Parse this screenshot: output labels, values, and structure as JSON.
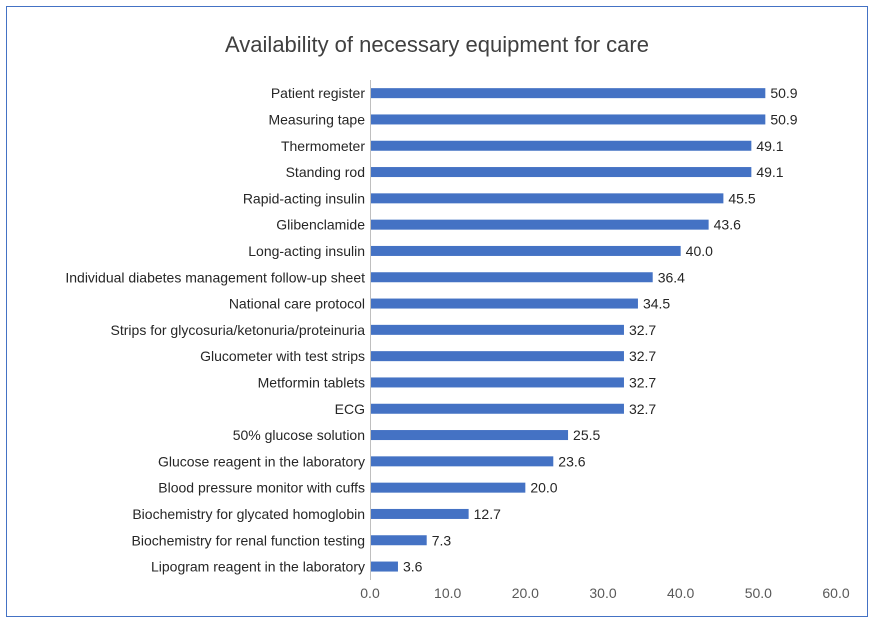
{
  "chart_data": {
    "type": "bar",
    "orientation": "horizontal",
    "title": "Availability of necessary equipment for care",
    "xlabel": "",
    "ylabel": "",
    "xlim": [
      0,
      60
    ],
    "xticks": [
      "0.0",
      "10.0",
      "20.0",
      "30.0",
      "40.0",
      "50.0",
      "60.0"
    ],
    "grid": false,
    "bar_color": "#4472c4",
    "categories": [
      "Patient register",
      "Measuring tape",
      "Thermometer",
      "Standing rod",
      "Rapid-acting insulin",
      "Glibenclamide",
      "Long-acting insulin",
      "Individual diabetes management follow-up sheet",
      "National care protocol",
      "Strips for glycosuria/ketonuria/proteinuria",
      "Glucometer with test strips",
      "Metformin tablets",
      "ECG",
      "50% glucose solution",
      "Glucose reagent in the laboratory",
      "Blood pressure monitor with cuffs",
      "Biochemistry for glycated homoglobin",
      "Biochemistry for renal function testing",
      "Lipogram reagent in the laboratory"
    ],
    "values": [
      50.9,
      50.9,
      49.1,
      49.1,
      45.5,
      43.6,
      40.0,
      36.4,
      34.5,
      32.7,
      32.7,
      32.7,
      32.7,
      25.5,
      23.6,
      20.0,
      12.7,
      7.3,
      3.6
    ],
    "value_labels": [
      "50.9",
      "50.9",
      "49.1",
      "49.1",
      "45.5",
      "43.6",
      "40.0",
      "36.4",
      "34.5",
      "32.7",
      "32.7",
      "32.7",
      "32.7",
      "25.5",
      "23.6",
      "20.0",
      "12.7",
      "7.3",
      "3.6"
    ]
  }
}
